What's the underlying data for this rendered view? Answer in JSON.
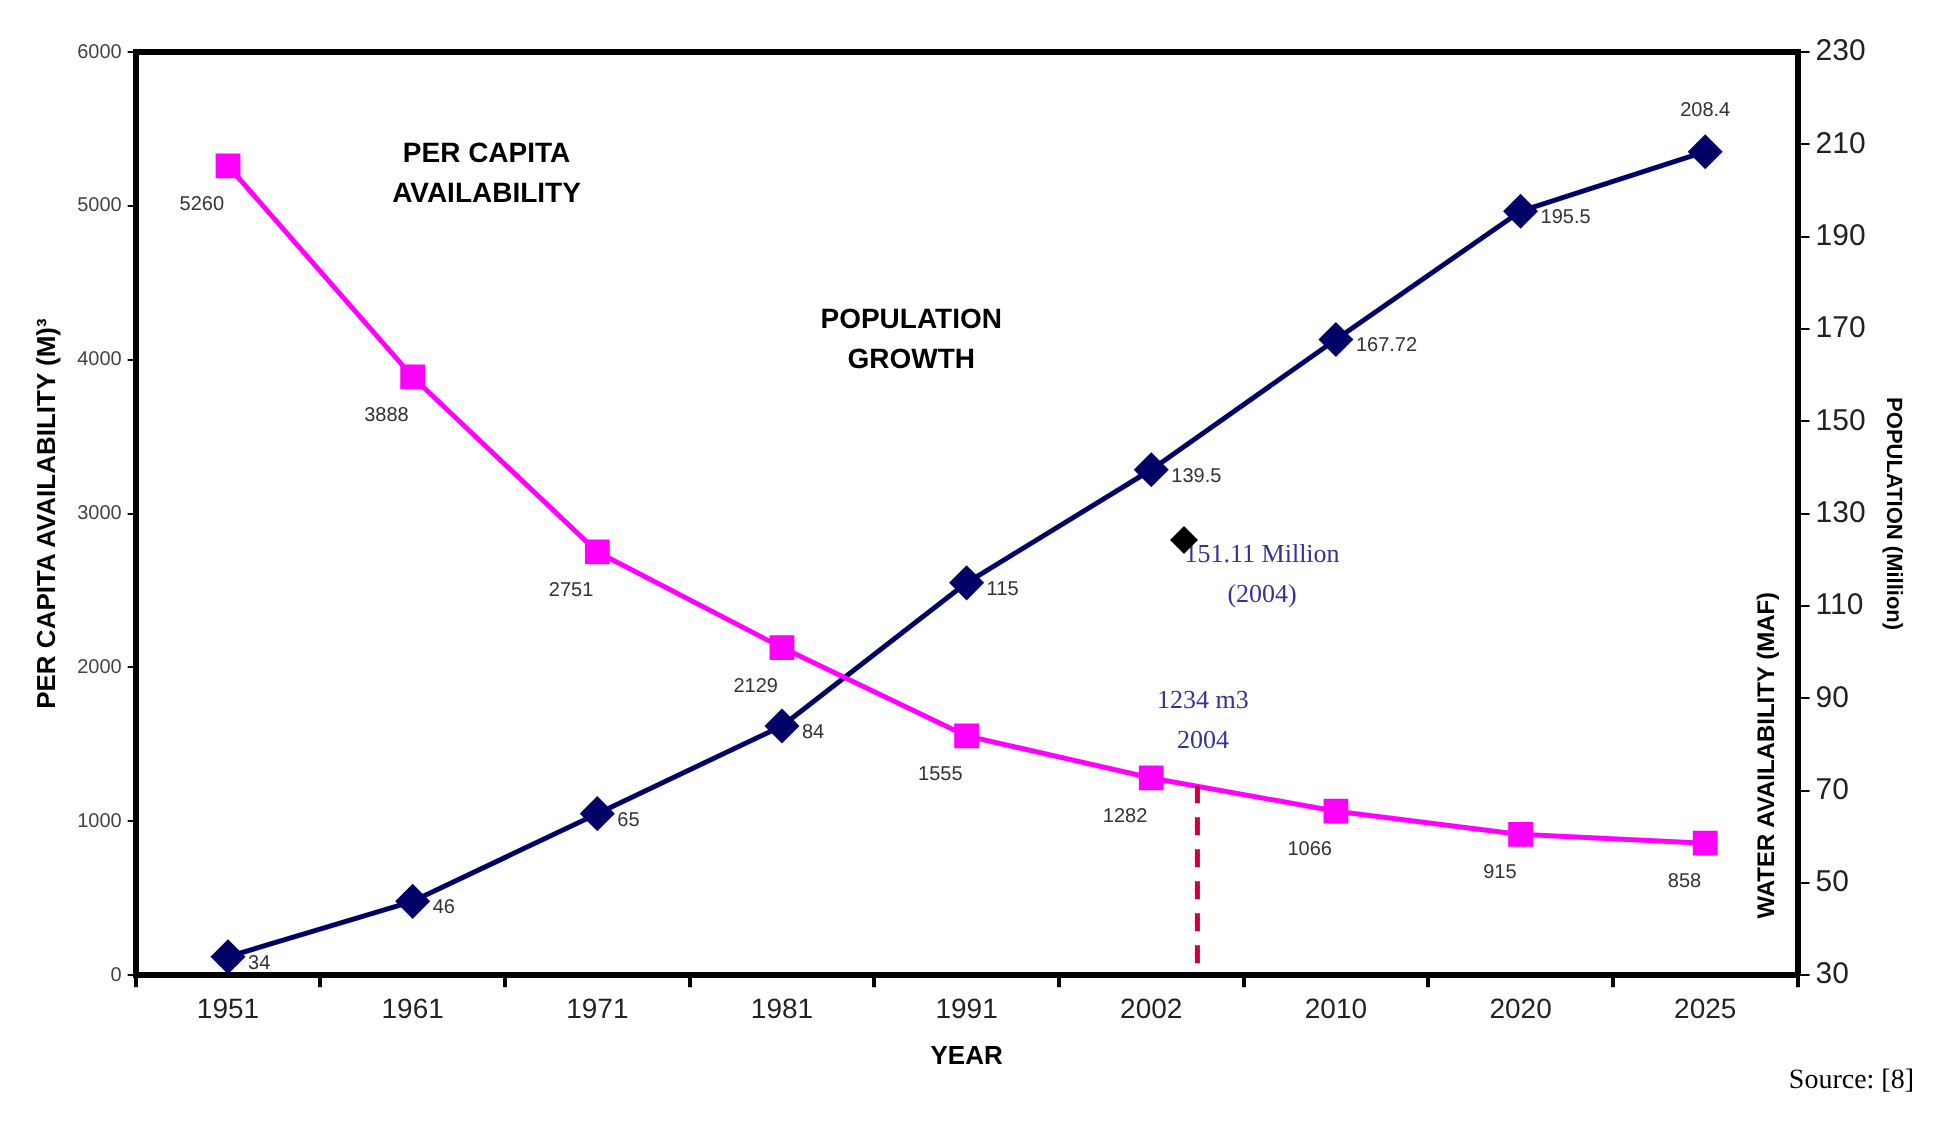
{
  "chart_data": {
    "type": "line",
    "xlabel": "YEAR",
    "ylabel": "PER CAPITA AVAILABILITY (M)³",
    "y2label": "POPULATION (Million)",
    "categories": [
      "1951",
      "1961",
      "1971",
      "1981",
      "1991",
      "2002",
      "2010",
      "2020",
      "2025"
    ],
    "series": [
      {
        "color": "#ff00ff",
        "marker": "square",
        "values": [
          5260,
          3888,
          2751,
          2129,
          1555,
          1282,
          1066,
          915,
          858
        ]
      },
      {
        "color": "#000066",
        "marker": "diamond",
        "axis": "y2",
        "values": [
          34,
          46,
          65,
          84,
          115,
          139.5,
          167.72,
          195.5,
          208.4
        ]
      }
    ],
    "value_labels": [
      [
        "5260",
        "3888",
        "2751",
        "2129",
        "1555",
        "1282",
        "1066",
        "915",
        "858"
      ],
      [
        "34",
        "46",
        "65",
        "84",
        "115",
        "139.5",
        "167.72",
        "195.5",
        "208.4"
      ]
    ],
    "ylim": [
      0,
      6000
    ],
    "yticks": [
      0,
      1000,
      2000,
      3000,
      4000,
      5000,
      6000
    ],
    "y2lim": [
      30,
      230
    ],
    "y2ticks": [
      30,
      50,
      70,
      90,
      110,
      130,
      150,
      170,
      190,
      210,
      230
    ],
    "annotations": [
      "PER CAPITA\nAVAILABILITY",
      "POPULATION\nGROWTH",
      "151.11 Million\n(2004)",
      {
        "text": "1234 m3\n2004",
        "y": 1234
      },
      "WATER AVAILABILITY (MAF)",
      "Source: [8]"
    ],
    "grid": false,
    "legend": false
  }
}
